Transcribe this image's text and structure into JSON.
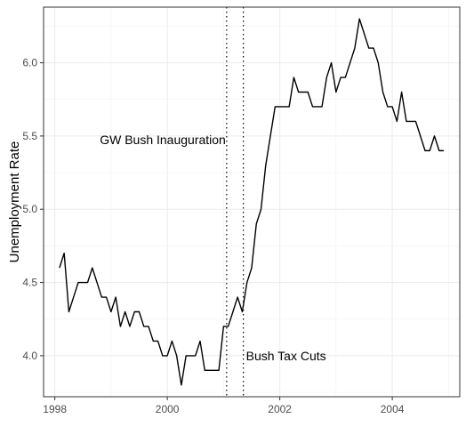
{
  "chart_data": {
    "type": "line",
    "xlabel": "",
    "ylabel": "Unemployment Rate",
    "xlim": [
      1997.8,
      2005.2
    ],
    "ylim": [
      3.72,
      6.38
    ],
    "x_ticks": [
      {
        "value": 1998,
        "label": "1998"
      },
      {
        "value": 2000,
        "label": "2000"
      },
      {
        "value": 2002,
        "label": "2002"
      },
      {
        "value": 2004,
        "label": "2004"
      }
    ],
    "y_ticks": [
      {
        "value": 4.0,
        "label": "4.0"
      },
      {
        "value": 4.5,
        "label": "4.5"
      },
      {
        "value": 5.0,
        "label": "5.0"
      },
      {
        "value": 5.5,
        "label": "5.5"
      },
      {
        "value": 6.0,
        "label": "6.0"
      }
    ],
    "grid": true,
    "series": [
      {
        "values": [
          4.6,
          4.7,
          4.3,
          4.4,
          4.5,
          4.5,
          4.5,
          4.6,
          4.5,
          4.4,
          4.4,
          4.3,
          4.4,
          4.2,
          4.3,
          4.2,
          4.3,
          4.3,
          4.2,
          4.2,
          4.1,
          4.1,
          4.0,
          4.0,
          4.1,
          4.0,
          3.8,
          4.0,
          4.0,
          4.0,
          4.1,
          3.9,
          3.9,
          3.9,
          3.9,
          4.2,
          4.2,
          4.3,
          4.4,
          4.3,
          4.5,
          4.6,
          4.9,
          5.0,
          5.3,
          5.5,
          5.7,
          5.7,
          5.7,
          5.7,
          5.9,
          5.8,
          5.8,
          5.8,
          5.7,
          5.7,
          5.7,
          5.9,
          6.0,
          5.8,
          5.9,
          5.9,
          6.0,
          6.1,
          6.3,
          6.2,
          6.1,
          6.1,
          6.0,
          5.8,
          5.7,
          5.7,
          5.6,
          5.8,
          5.6,
          5.6,
          5.6,
          5.5,
          5.4,
          5.4,
          5.5,
          5.4,
          5.4
        ],
        "x_start": 1998.083,
        "x_step_months": 1
      }
    ],
    "vlines": [
      {
        "x": 2001.055,
        "label": "GW Bush Inauguration"
      },
      {
        "x": 2001.352,
        "label": "Bush Tax Cuts"
      }
    ]
  }
}
